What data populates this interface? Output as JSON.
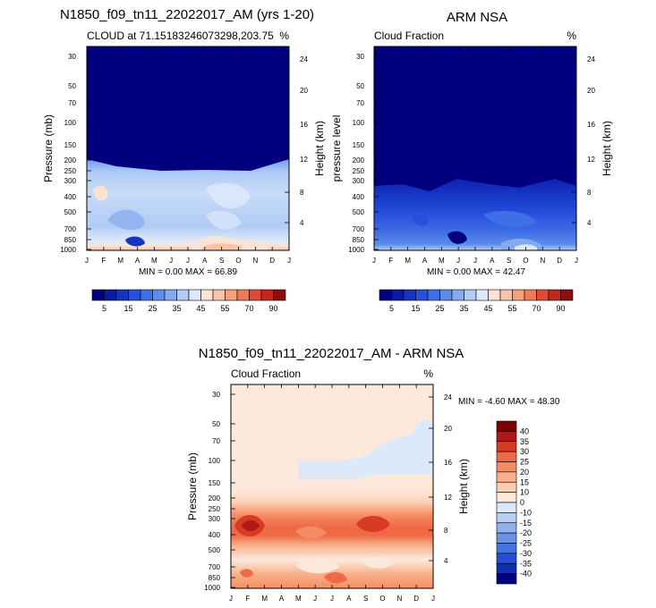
{
  "chart_data": [
    {
      "type": "heatmap",
      "id": "model",
      "title": "N1850_f09_tn11_22022017_AM (yrs 1-20)",
      "subtitle_left": "CLOUD at 71.15183246073298,203.75",
      "subtitle_right": "%",
      "ylabel": "Pressure (mb)",
      "ylabel_right": "Height (km)",
      "pressure_ticks": [
        "30",
        "50",
        "70",
        "100",
        "150",
        "200",
        "250",
        "300",
        "400",
        "500",
        "700",
        "850",
        "1000"
      ],
      "height_ticks": [
        "24",
        "20",
        "16",
        "12",
        "8",
        "4"
      ],
      "months": [
        "J",
        "F",
        "M",
        "A",
        "M",
        "J",
        "J",
        "A",
        "S",
        "O",
        "N",
        "D",
        "J"
      ],
      "min_max_text": "MIN =   0.00 MAX =  66.89",
      "min": 0.0,
      "max": 66.89,
      "levels": [
        0,
        5,
        10,
        15,
        20,
        25,
        30,
        35,
        40,
        45,
        50,
        55,
        60,
        70,
        80,
        90
      ],
      "labelled_levels": [
        "5",
        "15",
        "25",
        "35",
        "45",
        "55",
        "70",
        "90"
      ],
      "colors": [
        "#00007f",
        "#0a1aa3",
        "#1634c3",
        "#2750dd",
        "#3f6ee6",
        "#5d8ceb",
        "#84aaf0",
        "#b0cbf5",
        "#dde9fb",
        "#fbe2d4",
        "#f7c4a8",
        "#f4a07c",
        "#ef7a55",
        "#e14b34",
        "#c1261c",
        "#8f0d0d"
      ]
    },
    {
      "type": "heatmap",
      "id": "obs",
      "title": "ARM NSA",
      "subtitle_left": "Cloud Fraction",
      "subtitle_right": "%",
      "ylabel": "pressure level",
      "ylabel_right": "Height (km)",
      "pressure_ticks": [
        "30",
        "50",
        "70",
        "100",
        "150",
        "200",
        "250",
        "300",
        "400",
        "500",
        "700",
        "850",
        "1000"
      ],
      "height_ticks": [
        "24",
        "20",
        "16",
        "12",
        "8",
        "4"
      ],
      "months": [
        "J",
        "F",
        "M",
        "A",
        "M",
        "J",
        "J",
        "A",
        "S",
        "O",
        "N",
        "D",
        "J"
      ],
      "min_max_text": "MIN =   0.00 MAX =  42.47",
      "min": 0.0,
      "max": 42.47,
      "levels": [
        0,
        5,
        10,
        15,
        20,
        25,
        30,
        35,
        40,
        45,
        50,
        55,
        60,
        70,
        80,
        90
      ],
      "labelled_levels": [
        "5",
        "15",
        "25",
        "35",
        "45",
        "55",
        "70",
        "90"
      ],
      "colors": [
        "#00007f",
        "#0a1aa3",
        "#1634c3",
        "#2750dd",
        "#3f6ee6",
        "#5d8ceb",
        "#84aaf0",
        "#b0cbf5",
        "#dde9fb",
        "#fbe2d4",
        "#f7c4a8",
        "#f4a07c",
        "#ef7a55",
        "#e14b34",
        "#c1261c",
        "#8f0d0d"
      ]
    },
    {
      "type": "heatmap",
      "id": "diff",
      "title": "N1850_f09_tn11_22022017_AM - ARM NSA",
      "subtitle_left": "Cloud Fraction",
      "subtitle_right": "%",
      "ylabel": "Pressure (mb)",
      "ylabel_right": "Height (km)",
      "pressure_ticks": [
        "30",
        "50",
        "70",
        "100",
        "150",
        "200",
        "250",
        "300",
        "400",
        "500",
        "700",
        "850",
        "1000"
      ],
      "height_ticks": [
        "24",
        "20",
        "16",
        "12",
        "8",
        "4"
      ],
      "months": [
        "J",
        "F",
        "M",
        "A",
        "M",
        "J",
        "J",
        "A",
        "S",
        "O",
        "N",
        "D",
        "J"
      ],
      "min_max_text": "MIN =  -4.60 MAX =  48.30",
      "min": -4.6,
      "max": 48.3,
      "levels": [
        "40",
        "35",
        "30",
        "25",
        "20",
        "15",
        "10",
        "0",
        "-10",
        "-15",
        "-20",
        "-25",
        "-30",
        "-35",
        "-40"
      ],
      "colors": [
        "#7f0000",
        "#b01818",
        "#d93a26",
        "#ee6a46",
        "#f58d64",
        "#f8b08a",
        "#fbcfb2",
        "#fde9dc",
        "#dbe9fa",
        "#b6cff3",
        "#8fb1ec",
        "#6a92e6",
        "#4574df",
        "#2350d0",
        "#0e2fb0",
        "#00007f"
      ]
    }
  ]
}
